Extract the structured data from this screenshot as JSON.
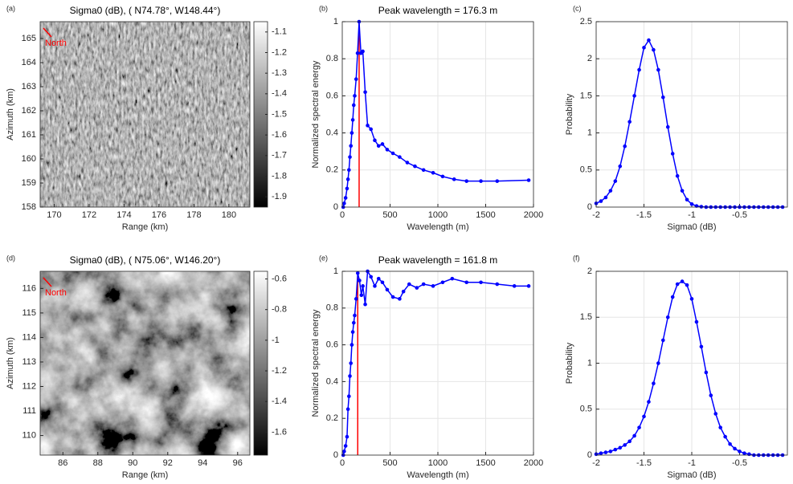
{
  "chart_data": [
    {
      "type": "image",
      "panel": "(a)",
      "title": "Sigma0 (dB), ( N74.78°, W148.44°)",
      "annotation": "North",
      "xlabel": "Range (km)",
      "ylabel": "Azimuth (km)",
      "xlim": [
        169.2,
        181.2
      ],
      "xticks": [
        170,
        172,
        174,
        176,
        178,
        180
      ],
      "ylim": [
        158,
        165.7
      ],
      "yticks": [
        158,
        159,
        160,
        161,
        162,
        163,
        164,
        165
      ],
      "clim": [
        -1.95,
        -1.05
      ],
      "cticks": [
        -1.9,
        -1.8,
        -1.7,
        -1.6,
        -1.5,
        -1.4,
        -1.3,
        -1.2,
        -1.1
      ]
    },
    {
      "type": "line",
      "panel": "(b)",
      "title": "Peak wavelength = 176.3 m",
      "xlabel": "Wavelength (m)",
      "ylabel": "Normalized spectral energy",
      "xlim": [
        0,
        2000
      ],
      "xticks": [
        0,
        500,
        1000,
        1500,
        2000
      ],
      "ylim": [
        0,
        1
      ],
      "yticks": [
        0,
        0.2,
        0.4,
        0.6,
        0.8,
        1
      ],
      "grid": true,
      "color": "#0000ff",
      "x": [
        10,
        20,
        35,
        50,
        60,
        70,
        80,
        90,
        100,
        110,
        120,
        130,
        145,
        160,
        176,
        195,
        215,
        240,
        265,
        300,
        340,
        380,
        420,
        470,
        530,
        600,
        680,
        760,
        850,
        950,
        1050,
        1170,
        1300,
        1450,
        1620,
        1950
      ],
      "values": [
        0,
        0.02,
        0.05,
        0.1,
        0.15,
        0.2,
        0.27,
        0.33,
        0.4,
        0.47,
        0.55,
        0.6,
        0.69,
        0.83,
        1.0,
        0.83,
        0.84,
        0.62,
        0.44,
        0.42,
        0.36,
        0.33,
        0.34,
        0.31,
        0.29,
        0.27,
        0.24,
        0.22,
        0.2,
        0.185,
        0.165,
        0.15,
        0.14,
        0.14,
        0.14,
        0.145
      ],
      "peak_line": {
        "x": 176.3,
        "color": "#ff0000"
      }
    },
    {
      "type": "line",
      "panel": "(c)",
      "xlabel": "Sigma0 (dB)",
      "ylabel": "Probability",
      "xlim": [
        -2,
        0
      ],
      "xticks": [
        -2,
        -1.5,
        -1,
        -0.5
      ],
      "ylim": [
        0,
        2.5
      ],
      "yticks": [
        0,
        0.5,
        1,
        1.5,
        2,
        2.5
      ],
      "grid": true,
      "color": "#0000ff",
      "x": [
        -2,
        -1.95,
        -1.9,
        -1.85,
        -1.8,
        -1.75,
        -1.7,
        -1.65,
        -1.6,
        -1.55,
        -1.5,
        -1.45,
        -1.4,
        -1.35,
        -1.3,
        -1.25,
        -1.2,
        -1.15,
        -1.1,
        -1.05,
        -1,
        -0.95,
        -0.9,
        -0.85,
        -0.8,
        -0.75,
        -0.7,
        -0.65,
        -0.6,
        -0.55,
        -0.5,
        -0.45,
        -0.4,
        -0.35,
        -0.3,
        -0.25,
        -0.2,
        -0.15,
        -0.1,
        -0.05
      ],
      "values": [
        0.05,
        0.08,
        0.13,
        0.22,
        0.35,
        0.55,
        0.82,
        1.15,
        1.5,
        1.85,
        2.15,
        2.25,
        2.12,
        1.85,
        1.48,
        1.08,
        0.72,
        0.42,
        0.22,
        0.1,
        0.04,
        0.015,
        0.005,
        0,
        0,
        0,
        0,
        0,
        0,
        0,
        0,
        0,
        0,
        0,
        0,
        0,
        0,
        0,
        0,
        0
      ]
    },
    {
      "type": "image",
      "panel": "(d)",
      "title": "Sigma0 (dB), ( N75.06°, W146.20°)",
      "annotation": "North",
      "xlabel": "Range (km)",
      "ylabel": "Azimuth (km)",
      "xlim": [
        84.7,
        96.7
      ],
      "xticks": [
        86,
        88,
        90,
        92,
        94,
        96
      ],
      "ylim": [
        109.2,
        116.7
      ],
      "yticks": [
        110,
        111,
        112,
        113,
        114,
        115,
        116
      ],
      "clim": [
        -1.75,
        -0.55
      ],
      "cticks": [
        -1.6,
        -1.4,
        -1.2,
        -1,
        -0.8,
        -0.6
      ]
    },
    {
      "type": "line",
      "panel": "(e)",
      "title": "Peak wavelength = 161.8 m",
      "xlabel": "Wavelength (m)",
      "ylabel": "Normalized spectral energy",
      "xlim": [
        0,
        2000
      ],
      "xticks": [
        0,
        500,
        1000,
        1500,
        2000
      ],
      "ylim": [
        0,
        1
      ],
      "yticks": [
        0,
        0.2,
        0.4,
        0.6,
        0.8,
        1
      ],
      "grid": true,
      "color": "#0000ff",
      "x": [
        10,
        20,
        35,
        50,
        60,
        70,
        80,
        90,
        100,
        110,
        120,
        130,
        145,
        162,
        180,
        200,
        215,
        240,
        265,
        300,
        340,
        380,
        420,
        470,
        530,
        600,
        640,
        700,
        780,
        850,
        950,
        1050,
        1150,
        1300,
        1450,
        1620,
        1800,
        1950
      ],
      "values": [
        0,
        0.02,
        0.05,
        0.1,
        0.25,
        0.32,
        0.43,
        0.5,
        0.6,
        0.67,
        0.72,
        0.76,
        0.85,
        0.99,
        0.95,
        0.87,
        0.92,
        0.82,
        1.0,
        0.97,
        0.92,
        0.96,
        0.94,
        0.9,
        0.86,
        0.85,
        0.89,
        0.93,
        0.91,
        0.93,
        0.92,
        0.94,
        0.96,
        0.94,
        0.94,
        0.93,
        0.92,
        0.92
      ],
      "peak_line": {
        "x": 161.8,
        "color": "#ff0000"
      }
    },
    {
      "type": "line",
      "panel": "(f)",
      "xlabel": "Sigma0 (dB)",
      "ylabel": "Probability",
      "xlim": [
        -2,
        0
      ],
      "xticks": [
        -2,
        -1.5,
        -1,
        -0.5
      ],
      "ylim": [
        0,
        2
      ],
      "yticks": [
        0,
        0.5,
        1,
        1.5,
        2
      ],
      "grid": true,
      "color": "#0000ff",
      "x": [
        -2,
        -1.95,
        -1.9,
        -1.85,
        -1.8,
        -1.75,
        -1.7,
        -1.65,
        -1.6,
        -1.55,
        -1.5,
        -1.45,
        -1.4,
        -1.35,
        -1.3,
        -1.25,
        -1.2,
        -1.15,
        -1.1,
        -1.05,
        -1,
        -0.95,
        -0.9,
        -0.85,
        -0.8,
        -0.75,
        -0.7,
        -0.65,
        -0.6,
        -0.55,
        -0.5,
        -0.45,
        -0.4,
        -0.35,
        -0.3,
        -0.25,
        -0.2,
        -0.15,
        -0.1,
        -0.05
      ],
      "values": [
        0.01,
        0.02,
        0.03,
        0.04,
        0.06,
        0.08,
        0.11,
        0.15,
        0.21,
        0.3,
        0.42,
        0.58,
        0.78,
        1.0,
        1.25,
        1.5,
        1.72,
        1.86,
        1.89,
        1.85,
        1.7,
        1.45,
        1.18,
        0.9,
        0.65,
        0.45,
        0.3,
        0.2,
        0.12,
        0.07,
        0.04,
        0.02,
        0.01,
        0,
        0,
        0,
        0,
        0,
        0,
        0
      ]
    }
  ]
}
